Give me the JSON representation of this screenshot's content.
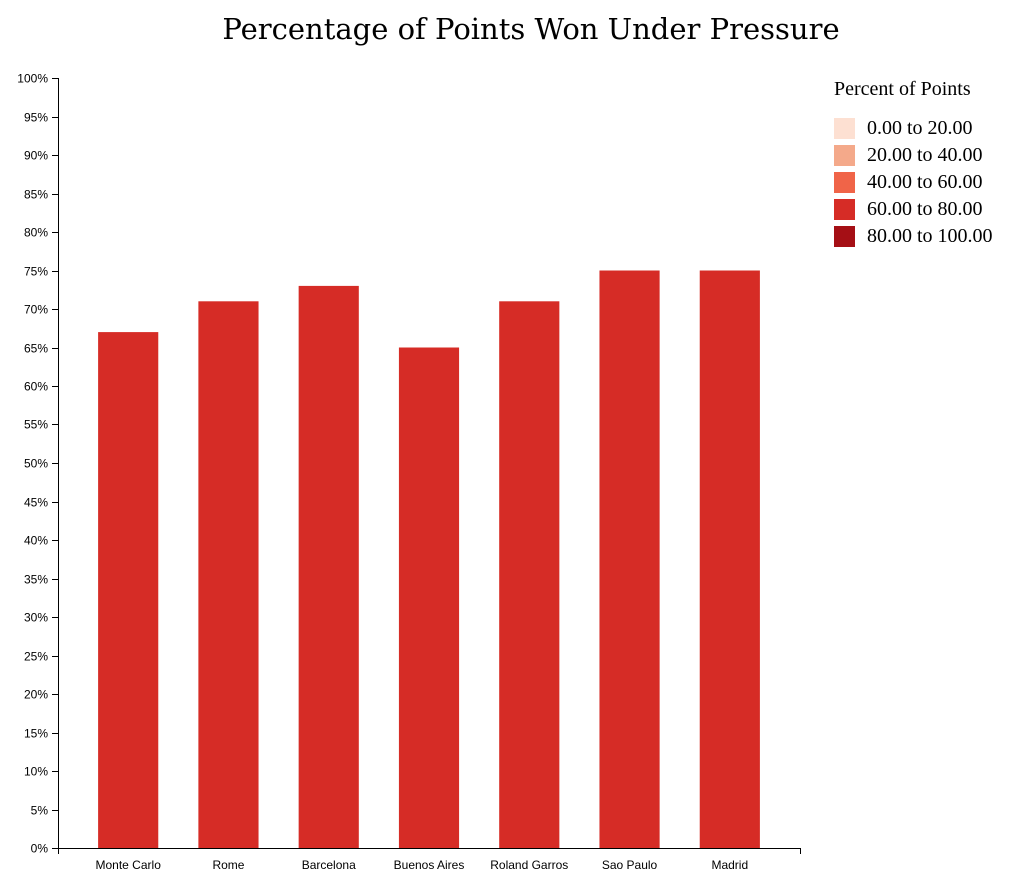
{
  "chart_data": {
    "type": "bar",
    "title": "Percentage of Points Won Under Pressure",
    "xlabel": "",
    "ylabel": "",
    "categories": [
      "Monte Carlo",
      "Rome",
      "Barcelona",
      "Buenos Aires",
      "Roland Garros",
      "Sao Paulo",
      "Madrid"
    ],
    "values": [
      67,
      71,
      73,
      65,
      71,
      75,
      75
    ],
    "ylim": [
      0,
      100
    ],
    "y_ticks": [
      "0%",
      "5%",
      "10%",
      "15%",
      "20%",
      "25%",
      "30%",
      "35%",
      "40%",
      "45%",
      "50%",
      "55%",
      "60%",
      "65%",
      "70%",
      "75%",
      "80%",
      "85%",
      "90%",
      "95%",
      "100%"
    ],
    "grid": false,
    "legend": {
      "title": "Percent of Points",
      "placement": "right",
      "items": [
        {
          "label": "0.00 to 20.00",
          "color": "#fde0d2"
        },
        {
          "label": "20.00 to 40.00",
          "color": "#f4a98a"
        },
        {
          "label": "40.00 to 60.00",
          "color": "#f06448"
        },
        {
          "label": "60.00 to 80.00",
          "color": "#d62c26"
        },
        {
          "label": "80.00 to 100.00",
          "color": "#a50f15"
        }
      ]
    }
  }
}
